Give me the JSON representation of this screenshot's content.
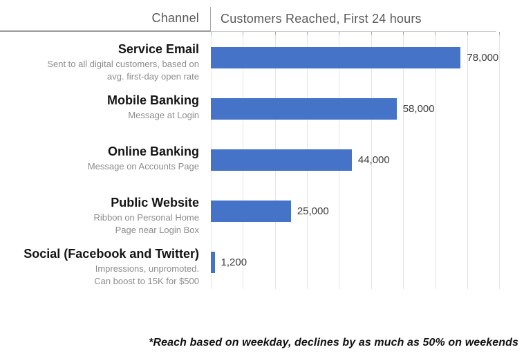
{
  "header": {
    "channel_label": "Channel",
    "title": "Customers Reached, First 24 hours"
  },
  "footnote": "*Reach based on weekday, declines by as much as 50% on weekends",
  "colors": {
    "bar": "#4573C8",
    "header_text": "#595959",
    "category_text": "#141414",
    "note_text": "#8C8C8C",
    "gridline": "#E4E4E4",
    "tick": "#A9A9A9"
  },
  "chart_data": {
    "type": "bar",
    "orientation": "horizontal",
    "title": "Customers Reached, First 24 hours",
    "left_column_header": "Channel",
    "categories": [
      "Service Email",
      "Mobile Banking",
      "Online Banking",
      "Public Website",
      "Social (Facebook and Twitter)"
    ],
    "values": [
      78000,
      58000,
      44000,
      25000,
      1200
    ],
    "value_labels": [
      "78,000",
      "58,000",
      "44,000",
      "25,000",
      "1,200"
    ],
    "category_notes": [
      "Sent to all digital customers, based on avg. first-day open rate",
      "Message at Login",
      "Message on Accounts Page",
      "Ribbon on Personal Home Page near Login Box",
      "Impressions, unpromoted. Can boost to 15K for $500"
    ],
    "xlim": [
      0,
      90000
    ],
    "gridline_step": 10000,
    "grid": true,
    "legend": false,
    "bar_color": "#4573C8",
    "annotation": "*Reach based on weekday, declines by as much as 50% on weekends"
  },
  "rows": [
    {
      "label": "Service Email",
      "note_lines": [
        "Sent to all digital customers, based on",
        "avg. first-day open rate"
      ],
      "value": 78000,
      "value_label": "78,000"
    },
    {
      "label": "Mobile Banking",
      "note_lines": [
        "Message at Login"
      ],
      "value": 58000,
      "value_label": "58,000"
    },
    {
      "label": "Online Banking",
      "note_lines": [
        "Message on Accounts Page"
      ],
      "value": 44000,
      "value_label": "44,000"
    },
    {
      "label": "Public Website",
      "note_lines": [
        "Ribbon on Personal Home",
        "Page near Login Box"
      ],
      "value": 25000,
      "value_label": "25,000"
    },
    {
      "label": "Social (Facebook and Twitter)",
      "note_lines": [
        "Impressions, unpromoted.",
        "Can boost to 15K for $500"
      ],
      "value": 1200,
      "value_label": "1,200"
    }
  ]
}
